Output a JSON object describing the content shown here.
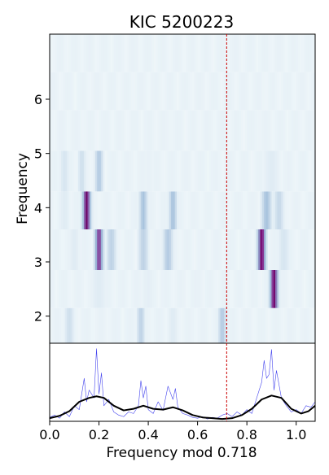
{
  "chart_data": [
    {
      "type": "heatmap",
      "title": "KIC 5200223",
      "xlabel": "",
      "ylabel": "Frequency",
      "xlim": [
        0.0,
        1.077
      ],
      "ylim": [
        1.5,
        7.2
      ],
      "y_ticks": [
        2,
        3,
        4,
        5,
        6
      ],
      "x_ticks": [],
      "colormap": "BuPu",
      "reference_line": {
        "x": 0.718,
        "color": "#cc0000",
        "style": "dashed"
      },
      "rows": [
        {
          "y0": 1.5,
          "y1": 2.15,
          "peaks": [
            {
              "x": 0.08,
              "v": 0.25,
              "w": 0.015
            },
            {
              "x": 0.37,
              "v": 0.35,
              "w": 0.012
            },
            {
              "x": 0.7,
              "v": 0.4,
              "w": 0.012
            },
            {
              "x": 0.5,
              "v": 0.15,
              "w": 0.02
            }
          ]
        },
        {
          "y0": 2.15,
          "y1": 2.85,
          "peaks": [
            {
              "x": 0.91,
              "v": 0.95,
              "w": 0.012
            },
            {
              "x": 0.2,
              "v": 0.15,
              "w": 0.03
            },
            {
              "x": 0.4,
              "v": 0.12,
              "w": 0.03
            },
            {
              "x": 0.6,
              "v": 0.1,
              "w": 0.03
            }
          ]
        },
        {
          "y0": 2.85,
          "y1": 3.6,
          "peaks": [
            {
              "x": 0.2,
              "v": 0.85,
              "w": 0.012
            },
            {
              "x": 0.86,
              "v": 0.95,
              "w": 0.012
            },
            {
              "x": 0.25,
              "v": 0.35,
              "w": 0.015
            },
            {
              "x": 0.38,
              "v": 0.35,
              "w": 0.015
            },
            {
              "x": 0.48,
              "v": 0.4,
              "w": 0.015
            },
            {
              "x": 0.1,
              "v": 0.15,
              "w": 0.02
            },
            {
              "x": 0.95,
              "v": 0.2,
              "w": 0.02
            }
          ]
        },
        {
          "y0": 3.6,
          "y1": 4.3,
          "peaks": [
            {
              "x": 0.15,
              "v": 0.95,
              "w": 0.012
            },
            {
              "x": 0.38,
              "v": 0.45,
              "w": 0.012
            },
            {
              "x": 0.5,
              "v": 0.45,
              "w": 0.012
            },
            {
              "x": 0.88,
              "v": 0.45,
              "w": 0.015
            },
            {
              "x": 0.93,
              "v": 0.3,
              "w": 0.015
            },
            {
              "x": 0.06,
              "v": 0.15,
              "w": 0.02
            }
          ]
        },
        {
          "y0": 4.3,
          "y1": 5.05,
          "peaks": [
            {
              "x": 0.2,
              "v": 0.4,
              "w": 0.012
            },
            {
              "x": 0.13,
              "v": 0.25,
              "w": 0.012
            },
            {
              "x": 0.06,
              "v": 0.2,
              "w": 0.015
            },
            {
              "x": 0.4,
              "v": 0.1,
              "w": 0.03
            },
            {
              "x": 0.9,
              "v": 0.15,
              "w": 0.03
            }
          ]
        },
        {
          "y0": 5.05,
          "y1": 5.8,
          "peaks": [
            {
              "x": 0.15,
              "v": 0.08,
              "w": 0.04
            },
            {
              "x": 0.5,
              "v": 0.08,
              "w": 0.04
            },
            {
              "x": 0.85,
              "v": 0.08,
              "w": 0.04
            }
          ]
        },
        {
          "y0": 5.8,
          "y1": 6.5,
          "peaks": [
            {
              "x": 0.3,
              "v": 0.06,
              "w": 0.05
            },
            {
              "x": 0.7,
              "v": 0.06,
              "w": 0.05
            }
          ]
        },
        {
          "y0": 6.5,
          "y1": 7.2,
          "peaks": [
            {
              "x": 0.5,
              "v": 0.04,
              "w": 0.08
            }
          ]
        }
      ]
    },
    {
      "type": "line",
      "xlabel": "Frequency mod 0.718",
      "ylabel": "",
      "xlim": [
        0.0,
        1.077
      ],
      "ylim": [
        0,
        1.0
      ],
      "x_ticks": [
        0.0,
        0.2,
        0.4,
        0.6,
        0.8,
        1.0
      ],
      "x_tick_labels": [
        "0.0",
        "0.2",
        "0.4",
        "0.6",
        "0.8",
        "1.0"
      ],
      "reference_line": {
        "x": 0.718,
        "color": "#cc0000",
        "style": "dashed"
      },
      "series": [
        {
          "color": "#4444ee",
          "width": 0.6,
          "x": [
            0.0,
            0.02,
            0.04,
            0.06,
            0.08,
            0.1,
            0.12,
            0.14,
            0.15,
            0.16,
            0.18,
            0.19,
            0.2,
            0.21,
            0.22,
            0.24,
            0.26,
            0.28,
            0.3,
            0.32,
            0.34,
            0.36,
            0.37,
            0.38,
            0.39,
            0.4,
            0.42,
            0.44,
            0.46,
            0.48,
            0.5,
            0.51,
            0.52,
            0.54,
            0.56,
            0.58,
            0.6,
            0.62,
            0.64,
            0.66,
            0.68,
            0.7,
            0.72,
            0.74,
            0.76,
            0.78,
            0.8,
            0.82,
            0.84,
            0.86,
            0.87,
            0.88,
            0.89,
            0.9,
            0.91,
            0.92,
            0.94,
            0.96,
            0.98,
            1.0,
            1.02,
            1.04,
            1.06,
            1.077
          ],
          "y": [
            0.05,
            0.08,
            0.04,
            0.12,
            0.06,
            0.2,
            0.15,
            0.55,
            0.25,
            0.4,
            0.3,
            0.93,
            0.35,
            0.62,
            0.2,
            0.28,
            0.12,
            0.08,
            0.06,
            0.12,
            0.1,
            0.2,
            0.52,
            0.3,
            0.45,
            0.15,
            0.1,
            0.25,
            0.14,
            0.45,
            0.28,
            0.42,
            0.18,
            0.1,
            0.08,
            0.05,
            0.04,
            0.06,
            0.03,
            0.05,
            0.04,
            0.08,
            0.1,
            0.06,
            0.12,
            0.08,
            0.15,
            0.1,
            0.3,
            0.5,
            0.78,
            0.55,
            0.6,
            0.92,
            0.4,
            0.65,
            0.3,
            0.2,
            0.12,
            0.15,
            0.1,
            0.2,
            0.18,
            0.25
          ]
        },
        {
          "color": "#000000",
          "width": 2,
          "x": [
            0.0,
            0.04,
            0.08,
            0.12,
            0.16,
            0.19,
            0.22,
            0.26,
            0.3,
            0.34,
            0.38,
            0.42,
            0.46,
            0.5,
            0.54,
            0.58,
            0.62,
            0.66,
            0.7,
            0.74,
            0.78,
            0.82,
            0.86,
            0.9,
            0.94,
            0.98,
            1.02,
            1.05,
            1.077
          ],
          "y": [
            0.04,
            0.07,
            0.13,
            0.25,
            0.3,
            0.32,
            0.3,
            0.2,
            0.14,
            0.16,
            0.2,
            0.16,
            0.15,
            0.18,
            0.14,
            0.08,
            0.05,
            0.04,
            0.03,
            0.04,
            0.08,
            0.16,
            0.28,
            0.33,
            0.3,
            0.16,
            0.1,
            0.13,
            0.2
          ]
        }
      ]
    }
  ]
}
